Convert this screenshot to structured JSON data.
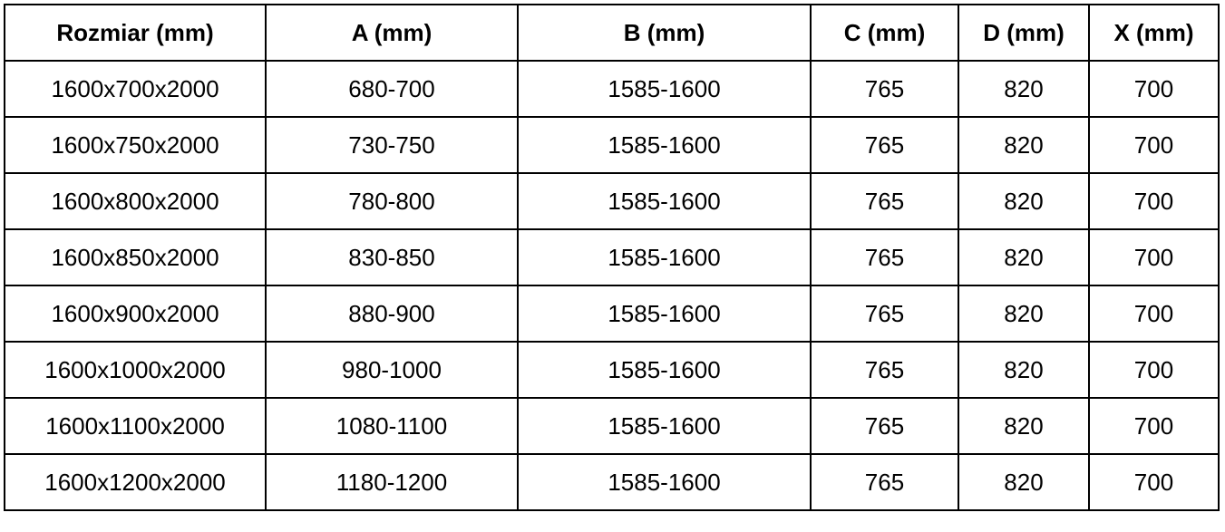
{
  "table": {
    "headers": [
      "Rozmiar (mm)",
      "A (mm)",
      "B (mm)",
      "C (mm)",
      "D (mm)",
      "X (mm)"
    ],
    "rows": [
      [
        "1600x700x2000",
        "680-700",
        "1585-1600",
        "765",
        "820",
        "700"
      ],
      [
        "1600x750x2000",
        "730-750",
        "1585-1600",
        "765",
        "820",
        "700"
      ],
      [
        "1600x800x2000",
        "780-800",
        "1585-1600",
        "765",
        "820",
        "700"
      ],
      [
        "1600x850x2000",
        "830-850",
        "1585-1600",
        "765",
        "820",
        "700"
      ],
      [
        "1600x900x2000",
        "880-900",
        "1585-1600",
        "765",
        "820",
        "700"
      ],
      [
        "1600x1000x2000",
        "980-1000",
        "1585-1600",
        "765",
        "820",
        "700"
      ],
      [
        "1600x1100x2000",
        "1080-1100",
        "1585-1600",
        "765",
        "820",
        "700"
      ],
      [
        "1600x1200x2000",
        "1180-1200",
        "1585-1600",
        "765",
        "820",
        "700"
      ]
    ]
  }
}
